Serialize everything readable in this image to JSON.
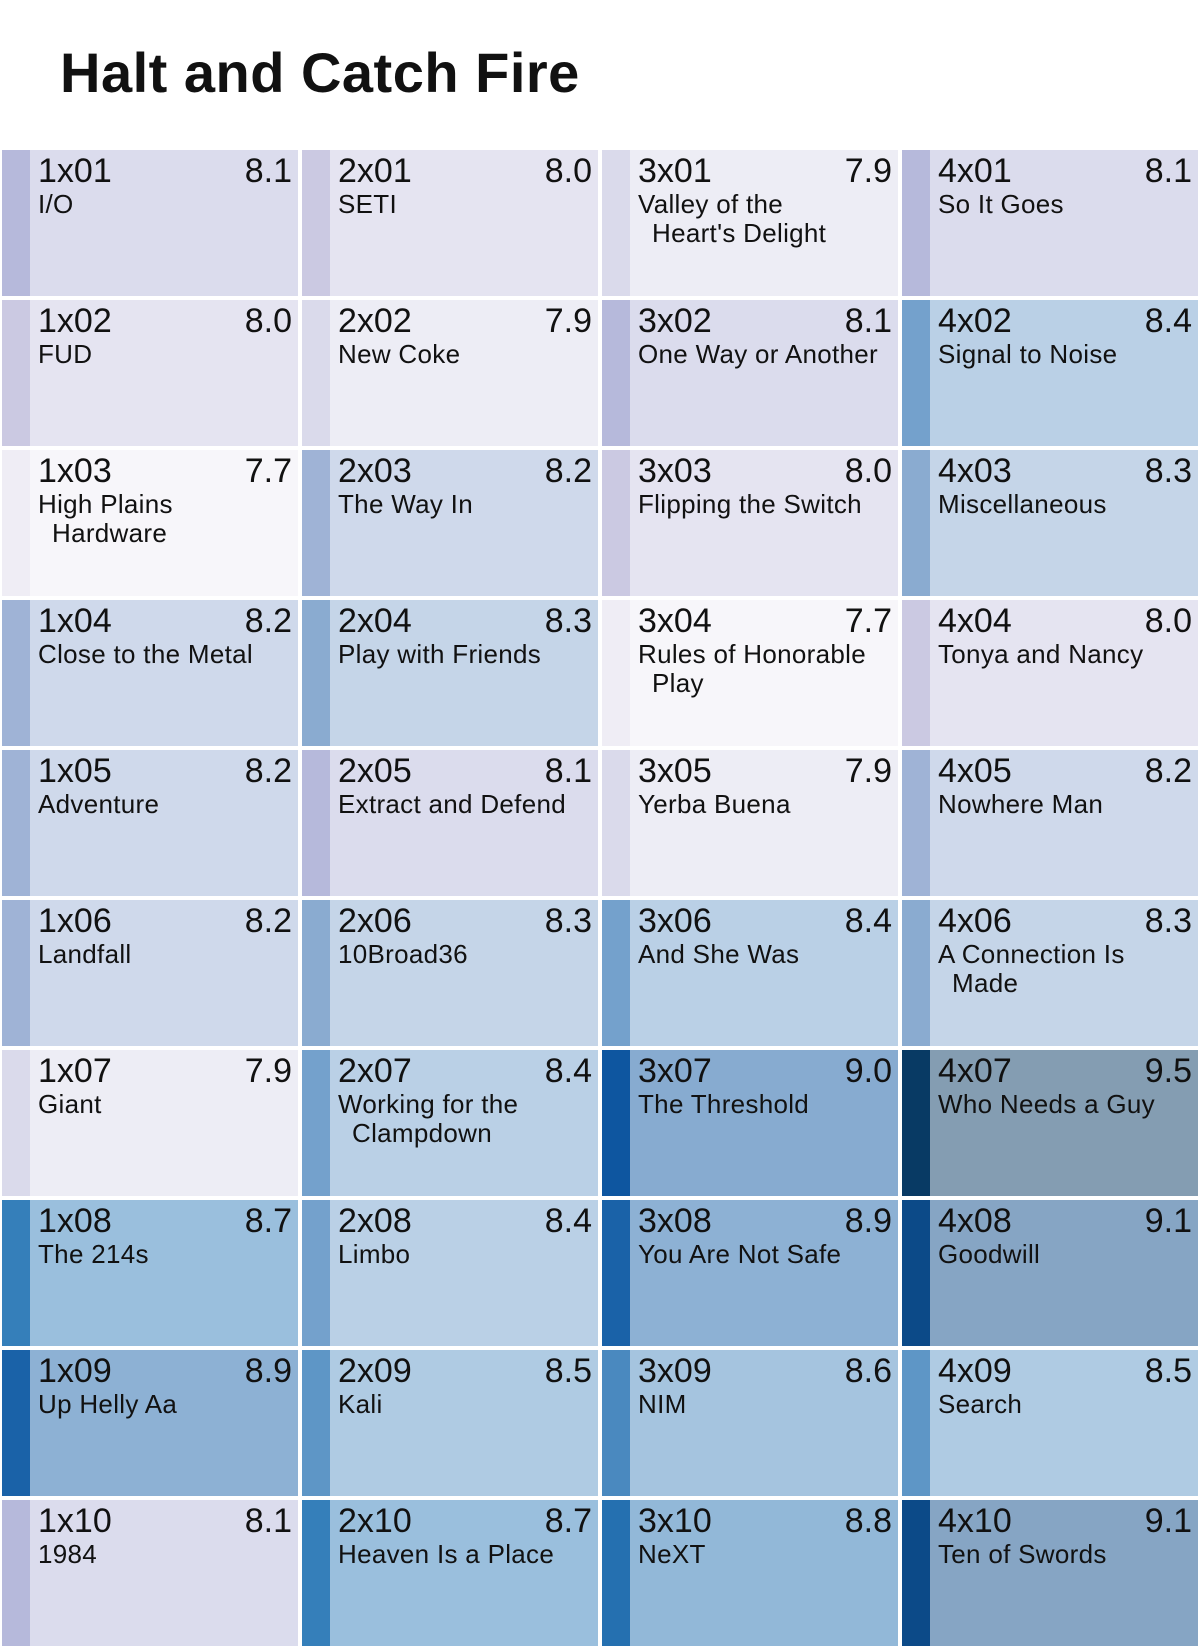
{
  "title": "Halt and Catch Fire",
  "chart_data": {
    "type": "heatmap",
    "title": "Halt and Catch Fire",
    "rating_range": [
      7.7,
      9.5
    ],
    "seasons": [
      {
        "season": 1,
        "episodes": [
          {
            "code": "1x01",
            "title": [
              "I/O"
            ],
            "rating": 8.1
          },
          {
            "code": "1x02",
            "title": [
              "FUD"
            ],
            "rating": 8.0
          },
          {
            "code": "1x03",
            "title": [
              "High Plains",
              "Hardware"
            ],
            "rating": 7.7
          },
          {
            "code": "1x04",
            "title": [
              "Close to the Metal"
            ],
            "rating": 8.2
          },
          {
            "code": "1x05",
            "title": [
              "Adventure"
            ],
            "rating": 8.2
          },
          {
            "code": "1x06",
            "title": [
              "Landfall"
            ],
            "rating": 8.2
          },
          {
            "code": "1x07",
            "title": [
              "Giant"
            ],
            "rating": 7.9
          },
          {
            "code": "1x08",
            "title": [
              "The 214s"
            ],
            "rating": 8.7
          },
          {
            "code": "1x09",
            "title": [
              "Up Helly Aa"
            ],
            "rating": 8.9
          },
          {
            "code": "1x10",
            "title": [
              "1984"
            ],
            "rating": 8.1
          }
        ]
      },
      {
        "season": 2,
        "episodes": [
          {
            "code": "2x01",
            "title": [
              "SETI"
            ],
            "rating": 8.0
          },
          {
            "code": "2x02",
            "title": [
              "New Coke"
            ],
            "rating": 7.9
          },
          {
            "code": "2x03",
            "title": [
              "The Way In"
            ],
            "rating": 8.2
          },
          {
            "code": "2x04",
            "title": [
              "Play with Friends"
            ],
            "rating": 8.3
          },
          {
            "code": "2x05",
            "title": [
              "Extract and Defend"
            ],
            "rating": 8.1
          },
          {
            "code": "2x06",
            "title": [
              "10Broad36"
            ],
            "rating": 8.3
          },
          {
            "code": "2x07",
            "title": [
              "Working for the",
              "Clampdown"
            ],
            "rating": 8.4
          },
          {
            "code": "2x08",
            "title": [
              "Limbo"
            ],
            "rating": 8.4
          },
          {
            "code": "2x09",
            "title": [
              "Kali"
            ],
            "rating": 8.5
          },
          {
            "code": "2x10",
            "title": [
              "Heaven Is a Place"
            ],
            "rating": 8.7
          }
        ]
      },
      {
        "season": 3,
        "episodes": [
          {
            "code": "3x01",
            "title": [
              "Valley of the",
              "Heart's Delight"
            ],
            "rating": 7.9
          },
          {
            "code": "3x02",
            "title": [
              "One Way or Another"
            ],
            "rating": 8.1
          },
          {
            "code": "3x03",
            "title": [
              "Flipping the Switch"
            ],
            "rating": 8.0
          },
          {
            "code": "3x04",
            "title": [
              "Rules of Honorable",
              "Play"
            ],
            "rating": 7.7
          },
          {
            "code": "3x05",
            "title": [
              "Yerba Buena"
            ],
            "rating": 7.9
          },
          {
            "code": "3x06",
            "title": [
              "And She Was"
            ],
            "rating": 8.4
          },
          {
            "code": "3x07",
            "title": [
              "The Threshold"
            ],
            "rating": 9.0
          },
          {
            "code": "3x08",
            "title": [
              "You Are Not Safe"
            ],
            "rating": 8.9
          },
          {
            "code": "3x09",
            "title": [
              "NIM"
            ],
            "rating": 8.6
          },
          {
            "code": "3x10",
            "title": [
              "NeXT"
            ],
            "rating": 8.8
          }
        ]
      },
      {
        "season": 4,
        "episodes": [
          {
            "code": "4x01",
            "title": [
              "So It Goes"
            ],
            "rating": 8.1
          },
          {
            "code": "4x02",
            "title": [
              "Signal to Noise"
            ],
            "rating": 8.4
          },
          {
            "code": "4x03",
            "title": [
              "Miscellaneous"
            ],
            "rating": 8.3
          },
          {
            "code": "4x04",
            "title": [
              "Tonya and Nancy"
            ],
            "rating": 8.0
          },
          {
            "code": "4x05",
            "title": [
              "Nowhere Man"
            ],
            "rating": 8.2
          },
          {
            "code": "4x06",
            "title": [
              "A Connection Is",
              "Made"
            ],
            "rating": 8.3
          },
          {
            "code": "4x07",
            "title": [
              "Who Needs a Guy"
            ],
            "rating": 9.5
          },
          {
            "code": "4x08",
            "title": [
              "Goodwill"
            ],
            "rating": 9.1
          },
          {
            "code": "4x09",
            "title": [
              "Search"
            ],
            "rating": 8.5
          },
          {
            "code": "4x10",
            "title": [
              "Ten of Swords"
            ],
            "rating": 9.1
          }
        ]
      }
    ],
    "colors": {
      "7.7": "#efedf5",
      "7.9": "#dadaeb",
      "8.0": "#cbc9e2",
      "8.1": "#b6b9db",
      "8.2": "#9fb3d6",
      "8.3": "#8aabd0",
      "8.4": "#74a1cc",
      "8.5": "#5e96c6",
      "8.6": "#4a89bf",
      "8.7": "#357fba",
      "8.8": "#2570b0",
      "8.9": "#1a62a8",
      "9.0": "#0e56a0",
      "9.1": "#0c4a88",
      "9.5": "#083a64"
    }
  }
}
